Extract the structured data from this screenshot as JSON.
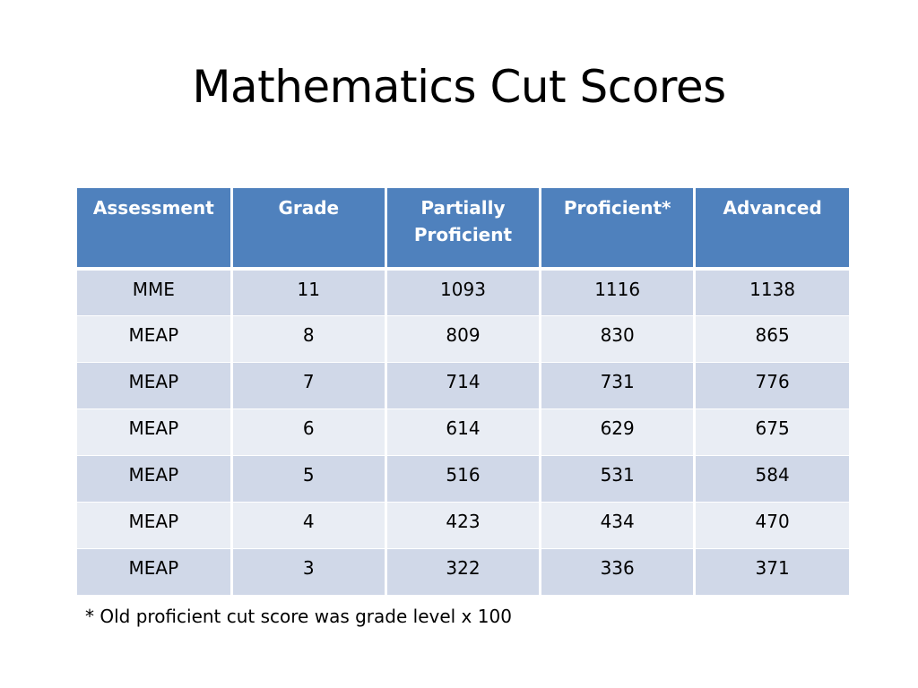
{
  "slide": {
    "title": "Mathematics Cut Scores",
    "footnote": "* Old proficient cut score was grade level x 100"
  },
  "table": {
    "headers": [
      "Assessment",
      "Grade",
      "Partially Proficient",
      "Proficient*",
      "Advanced"
    ],
    "rows": [
      [
        "MME",
        "11",
        "1093",
        "1116",
        "1138"
      ],
      [
        "MEAP",
        "8",
        "809",
        "830",
        "865"
      ],
      [
        "MEAP",
        "7",
        "714",
        "731",
        "776"
      ],
      [
        "MEAP",
        "6",
        "614",
        "629",
        "675"
      ],
      [
        "MEAP",
        "5",
        "516",
        "531",
        "584"
      ],
      [
        "MEAP",
        "4",
        "423",
        "434",
        "470"
      ],
      [
        "MEAP",
        "3",
        "322",
        "336",
        "371"
      ]
    ]
  },
  "colors": {
    "header_background": "#4f81bd",
    "row_band_dark": "#d0d8e8",
    "row_band_light": "#e9edf4",
    "header_text": "#ffffff"
  }
}
